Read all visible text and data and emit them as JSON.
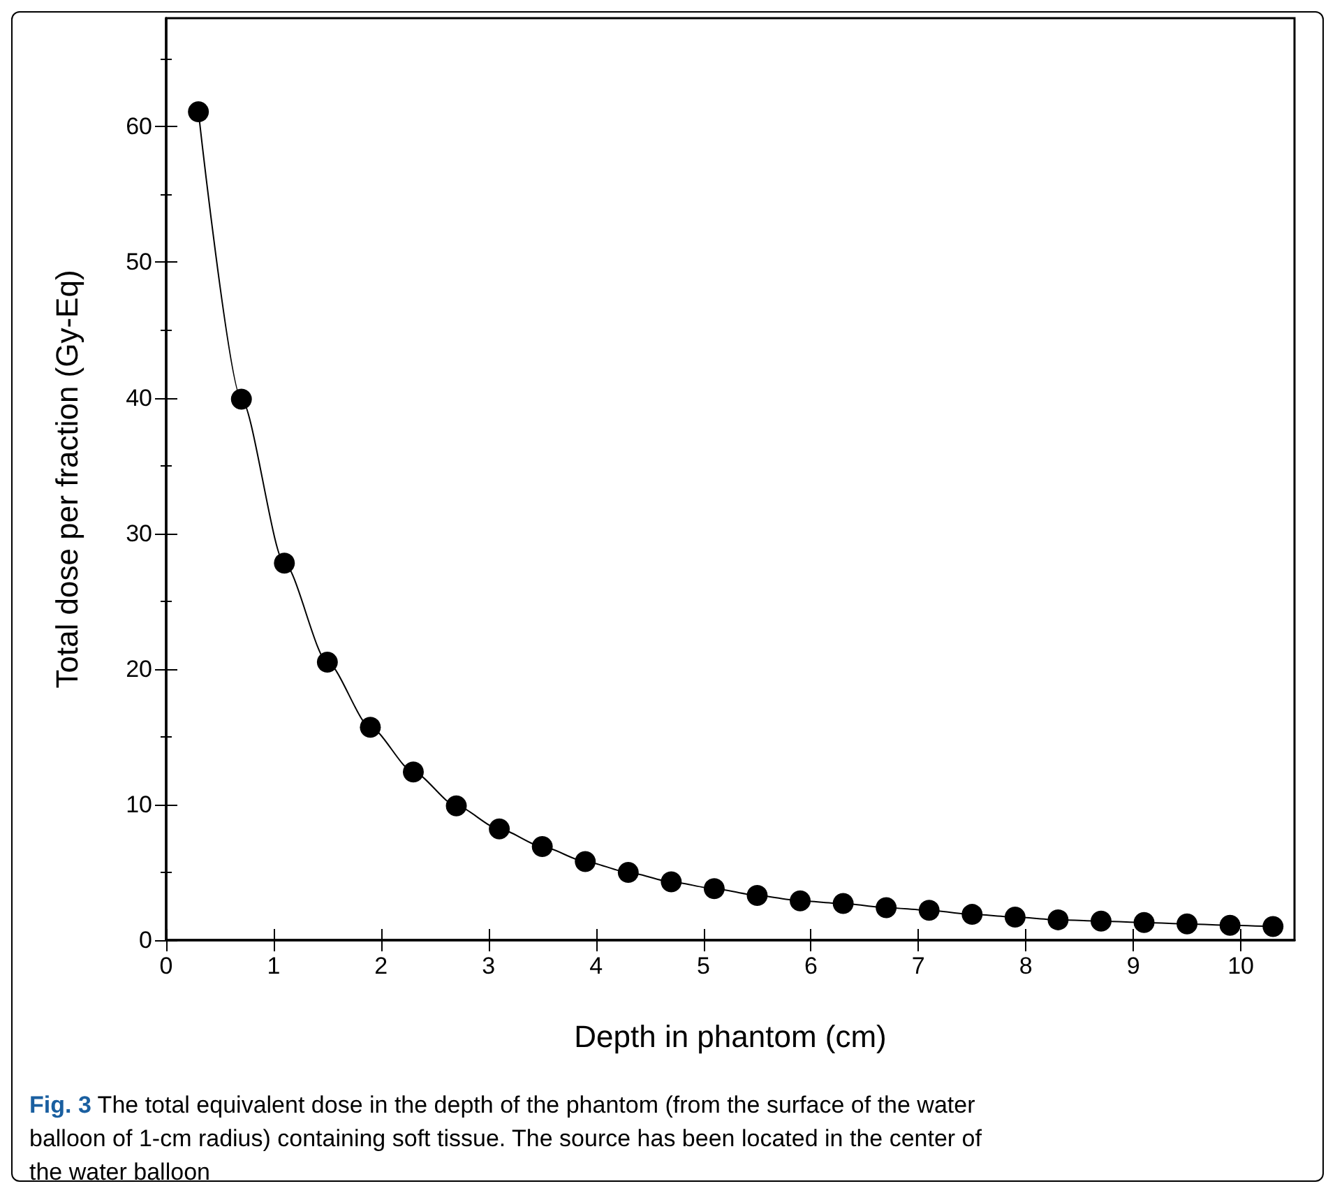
{
  "chart_data": {
    "type": "line",
    "xlabel": "Depth in phantom (cm)",
    "ylabel": "Total dose per fraction (Gy-Eq)",
    "annotations": [
      "Fig. 3 The total equivalent dose in the depth of the phantom (from the surface of the water balloon of 1-cm radius) containing soft tissue. The source has been located in the center of the water balloon"
    ],
    "x": [
      0.3,
      0.7,
      1.1,
      1.5,
      1.9,
      2.3,
      2.7,
      3.1,
      3.5,
      3.9,
      4.3,
      4.7,
      5.1,
      5.5,
      5.9,
      6.3,
      6.7,
      7.1,
      7.5,
      7.9,
      8.3,
      8.7,
      9.1,
      9.5,
      9.9,
      10.3
    ],
    "series": [
      {
        "color": "#000000",
        "values": [
          61.1,
          39.9,
          27.8,
          20.5,
          15.7,
          12.4,
          9.9,
          8.2,
          6.9,
          5.8,
          5.0,
          4.3,
          3.8,
          3.3,
          2.9,
          2.7,
          2.4,
          2.2,
          1.9,
          1.7,
          1.5,
          1.4,
          1.3,
          1.2,
          1.1,
          1.0
        ]
      }
    ],
    "xlim": [
      0,
      10.5
    ],
    "ylim": [
      0,
      68
    ],
    "xticks": [
      0,
      1,
      2,
      3,
      4,
      5,
      6,
      7,
      8,
      9,
      10
    ],
    "yticks": [
      0,
      10,
      20,
      30,
      40,
      50,
      60
    ],
    "marker": "circle",
    "line_style": "solid"
  }
}
